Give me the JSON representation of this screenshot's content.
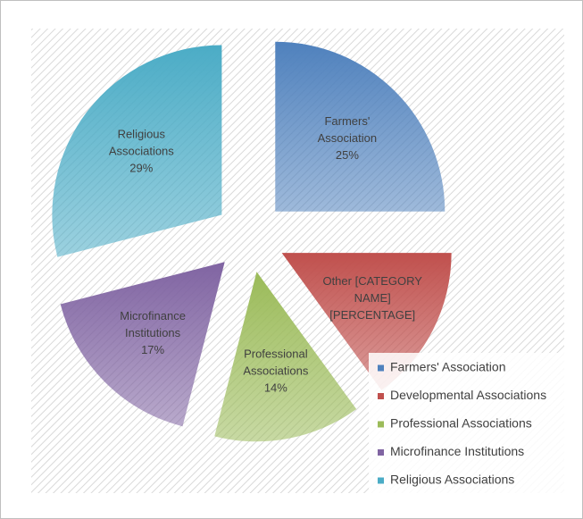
{
  "chart_data": {
    "type": "pie",
    "categories": [
      "Farmers' Association",
      "Developmental Associations",
      "Professional Associations",
      "Microfinance Institutions",
      "Religious Associations"
    ],
    "values": [
      25,
      15,
      14,
      17,
      29
    ],
    "value_labels": [
      [
        "Farmers'",
        "Association",
        "25%"
      ],
      [
        "Other [CATEGORY",
        "NAME]",
        "[PERCENTAGE]"
      ],
      [
        "Professional",
        "Associations",
        "14%"
      ],
      [
        "Microfinance",
        "Institutions",
        "17%"
      ],
      [
        "Religious",
        "Associations",
        "29%"
      ]
    ],
    "colors": [
      "#4f81bd",
      "#c0504d",
      "#9bbb59",
      "#8064a2",
      "#4bacc6"
    ],
    "legend": "bottom-right"
  }
}
